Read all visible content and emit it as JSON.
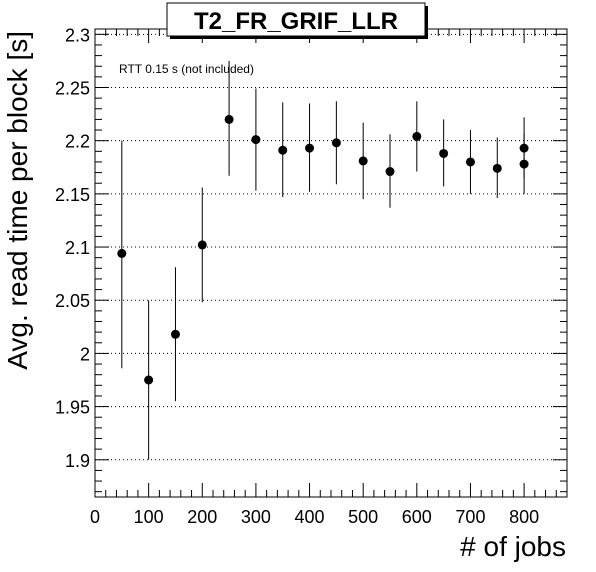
{
  "chart_data": {
    "type": "scatter",
    "title": "T2_FR_GRIF_LLR",
    "xlabel": "# of jobs",
    "ylabel": "Avg. read time per block [s]",
    "annotation": "RTT 0.15 s (not included)",
    "xlim": [
      0,
      880
    ],
    "ylim": [
      1.865,
      2.305
    ],
    "x_ticks": [
      0,
      100,
      200,
      300,
      400,
      500,
      600,
      700,
      800
    ],
    "x_tick_labels": [
      "0",
      "100",
      "200",
      "300",
      "400",
      "500",
      "600",
      "700",
      "800"
    ],
    "y_ticks": [
      1.9,
      1.95,
      2.0,
      2.05,
      2.1,
      2.15,
      2.2,
      2.25,
      2.3
    ],
    "y_tick_labels": [
      "1.9",
      "1.95",
      "2",
      "2.05",
      "2.1",
      "2.15",
      "2.2",
      "2.25",
      "2.3"
    ],
    "grid": "horizontal dotted",
    "marker_color": "#000000",
    "series": [
      {
        "x": [
          50,
          100,
          150,
          200,
          250,
          300,
          350,
          400,
          450,
          500,
          550,
          600,
          650,
          700,
          750,
          800,
          800
        ],
        "y": [
          2.094,
          1.975,
          2.018,
          2.102,
          2.22,
          2.201,
          2.191,
          2.193,
          2.198,
          2.181,
          2.171,
          2.204,
          2.188,
          2.18,
          2.174,
          2.193,
          2.178
        ],
        "y_low": [
          1.986,
          1.9,
          1.955,
          2.048,
          2.167,
          2.153,
          2.147,
          2.152,
          2.159,
          2.145,
          2.137,
          2.171,
          2.157,
          2.15,
          2.146,
          2.165,
          2.15
        ],
        "y_high": [
          2.2,
          2.05,
          2.081,
          2.156,
          2.275,
          2.249,
          2.236,
          2.235,
          2.237,
          2.217,
          2.206,
          2.237,
          2.22,
          2.21,
          2.203,
          2.222,
          2.207
        ]
      }
    ]
  }
}
